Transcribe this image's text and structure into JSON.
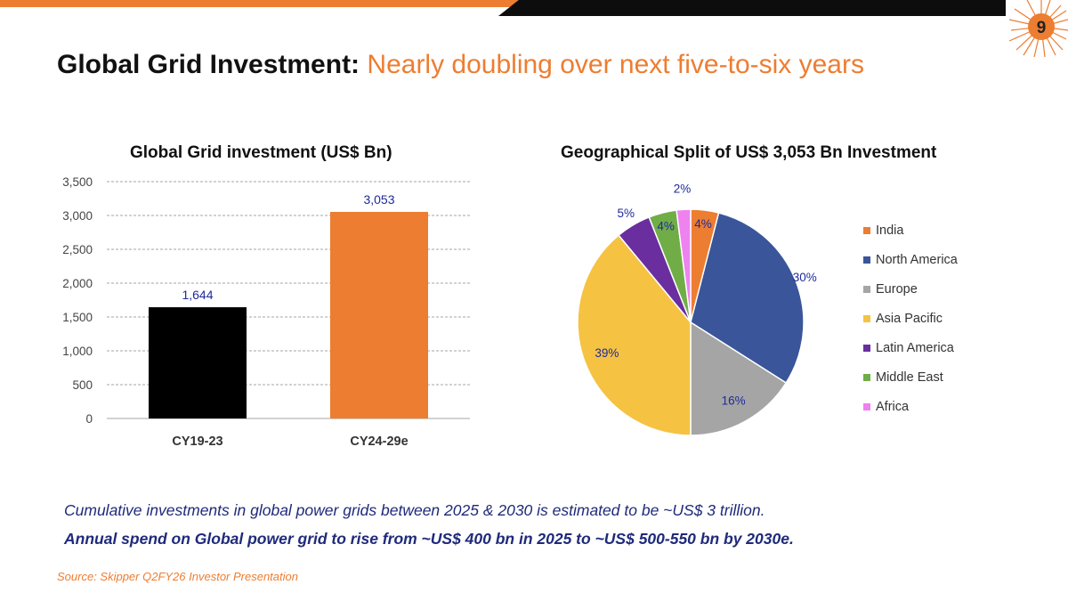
{
  "slide": {
    "title_main": "Global Grid Investment:",
    "title_sub": "Nearly doubling over next five-to-six years",
    "page_number": "9",
    "note1": "Cumulative investments in global power grids between 2025 & 2030 is estimated to be ~US$ 3 trillion.",
    "note2": "Annual spend on Global power grid to rise from ~US$ 400 bn in 2025 to ~US$ 500-550 bn by 2030e.",
    "source": "Source: Skipper Q2FY26 Investor Presentation",
    "colors": {
      "accent": "#ed7d31",
      "dark": "#0d0d0d",
      "note": "#1f2a7a"
    }
  },
  "chart_data": [
    {
      "type": "bar",
      "title": "Global Grid investment (US$ Bn)",
      "categories": [
        "CY19-23",
        "CY24-29e"
      ],
      "values": [
        1644,
        3053
      ],
      "value_labels": [
        "1,644",
        "3,053"
      ],
      "colors": [
        "#000000",
        "#ed7d31"
      ],
      "ylim": [
        0,
        3500
      ],
      "yticks": [
        0,
        500,
        1000,
        1500,
        2000,
        2500,
        3000,
        3500
      ],
      "ytick_labels": [
        "0",
        "500",
        "1,000",
        "1,500",
        "2,000",
        "2,500",
        "3,000",
        "3,500"
      ],
      "grid": true,
      "xlabel": "",
      "ylabel": ""
    },
    {
      "type": "pie",
      "title": "Geographical Split of US$ 3,053 Bn Investment",
      "labels": [
        "India",
        "North America",
        "Europe",
        "Asia Pacific",
        "Latin America",
        "Middle East",
        "Africa"
      ],
      "values": [
        4,
        30,
        16,
        39,
        5,
        4,
        2
      ],
      "value_labels": [
        "4%",
        "30%",
        "16%",
        "39%",
        "5%",
        "4%",
        "2%"
      ],
      "colors": [
        "#ed7d31",
        "#3a5599",
        "#a5a5a5",
        "#f5c242",
        "#6a2e9e",
        "#70ad47",
        "#ee82ee"
      ],
      "legend_position": "right"
    }
  ]
}
